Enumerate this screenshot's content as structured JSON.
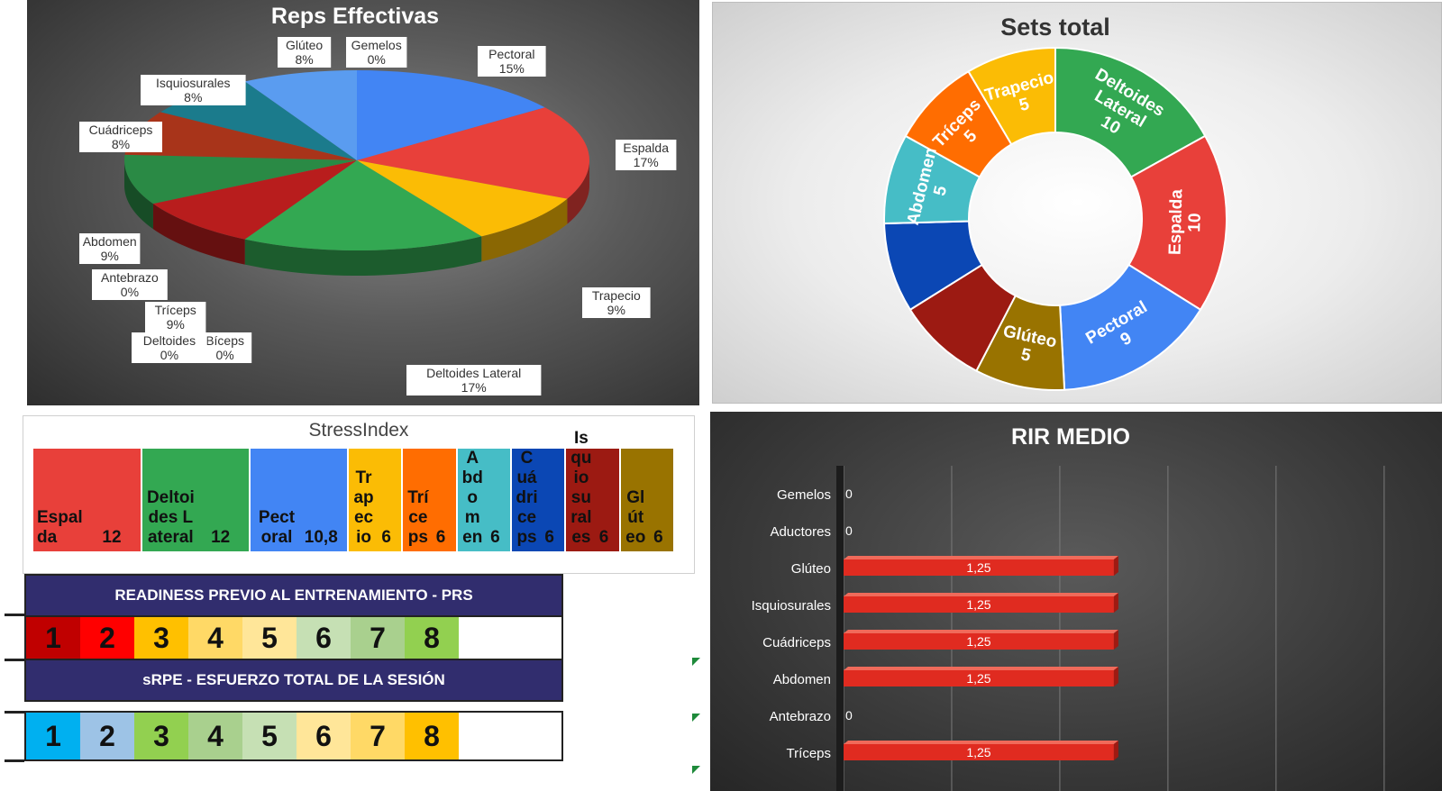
{
  "colors": {
    "espalda": "#e8403a",
    "deltoides": "#33a852",
    "pectoral": "#4285f4",
    "trapecio": "#fbbc05",
    "triceps": "#ff6d01",
    "abdomen": "#46bdc6",
    "cuadriceps": "#0b47b4",
    "isquiosurales": "#9c1a12",
    "gluteo": "#997300",
    "teal": "#1b7b8c",
    "brownred": "#a8341a",
    "darkgreen": "#2a8a45",
    "darkred": "#b81d1d"
  },
  "chart_data": [
    {
      "type": "pie",
      "title": "Reps Effectivas",
      "slices": [
        {
          "name": "Pectoral",
          "value": 15,
          "label": "15%",
          "color": "#4285f4"
        },
        {
          "name": "Espalda",
          "value": 17,
          "label": "17%",
          "color": "#e8403a"
        },
        {
          "name": "Trapecio",
          "value": 9,
          "label": "9%",
          "color": "#fbbc05"
        },
        {
          "name": "Deltoides Lateral",
          "value": 17,
          "label": "17%",
          "color": "#33a852"
        },
        {
          "name": "Bíceps",
          "value": 0,
          "label": "0%",
          "color": "#ff6d01"
        },
        {
          "name": "Deltoides",
          "value": 0,
          "label": "0%",
          "color": "#46bdc6"
        },
        {
          "name": "Tríceps",
          "value": 9,
          "label": "9%",
          "color": "#b81d1d"
        },
        {
          "name": "Antebrazo",
          "value": 0,
          "label": "0%",
          "color": "#0b47b4"
        },
        {
          "name": "Abdomen",
          "value": 9,
          "label": "9%",
          "color": "#2a8a45"
        },
        {
          "name": "Cuádriceps",
          "value": 8,
          "label": "8%",
          "color": "#a8341a"
        },
        {
          "name": "Isquiosurales",
          "value": 8,
          "label": "8%",
          "color": "#1b7b8c"
        },
        {
          "name": "Glúteo",
          "value": 8,
          "label": "8%",
          "color": "#5a9cf0"
        },
        {
          "name": "Gemelos",
          "value": 0,
          "label": "0%",
          "color": "#9c1a12"
        }
      ]
    },
    {
      "type": "pie",
      "variant": "donut",
      "title": "Sets total",
      "slices": [
        {
          "name": "Deltoides Lateral",
          "value": 10,
          "label_lines": [
            "Deltoides",
            "Lateral",
            "10"
          ],
          "color": "#33a852"
        },
        {
          "name": "Espalda",
          "value": 10,
          "label_lines": [
            "Espalda",
            "10"
          ],
          "color": "#e8403a"
        },
        {
          "name": "Pectoral",
          "value": 9,
          "label_lines": [
            "Pectoral",
            "9"
          ],
          "color": "#4285f4"
        },
        {
          "name": "Glúteo",
          "value": 5,
          "label_lines": [
            "Glúteo",
            "5"
          ],
          "color": "#997300"
        },
        {
          "name": "",
          "value": 5,
          "label_lines": [],
          "color": "#9c1a12"
        },
        {
          "name": "",
          "value": 5,
          "label_lines": [],
          "color": "#0b47b4"
        },
        {
          "name": "Abdomen",
          "value": 5,
          "label_lines": [
            "Abdomen",
            "5"
          ],
          "color": "#46bdc6"
        },
        {
          "name": "Tríceps",
          "value": 5,
          "label_lines": [
            "Tríceps",
            "5"
          ],
          "color": "#ff6d01"
        },
        {
          "name": "Trapecio",
          "value": 5,
          "label_lines": [
            "Trapecio",
            "5"
          ],
          "color": "#fbbc05"
        }
      ]
    },
    {
      "type": "heatmap",
      "variant": "treemap",
      "title": "StressIndex",
      "cells": [
        {
          "name": "Espalda",
          "display": "Espalda",
          "value": 12,
          "value_label": "12",
          "color": "#e8403a"
        },
        {
          "name": "Deltoides Lateral",
          "display": "Deltoides Lateral",
          "value": 12,
          "value_label": "12",
          "color": "#33a852"
        },
        {
          "name": "Pectoral",
          "display": "Pectoral",
          "value": 10.8,
          "value_label": "10,8",
          "color": "#4285f4"
        },
        {
          "name": "Trapecio",
          "display": "Trapecio",
          "value": 6,
          "value_label": "6",
          "color": "#fbbc05"
        },
        {
          "name": "Tríceps",
          "display": "Tríceps",
          "value": 6,
          "value_label": "6",
          "color": "#ff6d01"
        },
        {
          "name": "Abdomen",
          "display": "Abdomen",
          "value": 6,
          "value_label": "6",
          "color": "#46bdc6"
        },
        {
          "name": "Cuádriceps",
          "display": "Cuádriceps",
          "value": 6,
          "value_label": "6",
          "color": "#0b47b4"
        },
        {
          "name": "Isquiosurales",
          "display": "Isquiosurales",
          "value": 6,
          "value_label": "6",
          "color": "#9c1a12"
        },
        {
          "name": "Glúteo",
          "display": "Glúteo",
          "value": 6,
          "value_label": "6",
          "color": "#997300"
        }
      ]
    },
    {
      "type": "bar",
      "orientation": "horizontal",
      "title": "RIR MEDIO",
      "categories": [
        "Gemelos",
        "Aductores",
        "Glúteo",
        "Isquiosurales",
        "Cuádriceps",
        "Abdomen",
        "Antebrazo",
        "Tríceps"
      ],
      "values": [
        0,
        0,
        1.25,
        1.25,
        1.25,
        1.25,
        0,
        1.25
      ],
      "value_labels": [
        "0",
        "0",
        "1,25",
        "1,25",
        "1,25",
        "1,25",
        "0",
        "1,25"
      ],
      "xlim": [
        0,
        2.5
      ],
      "grid": true
    }
  ],
  "readiness": {
    "title": "READINESS PREVIO AL ENTRENAMIENTO - PRS",
    "cells": [
      {
        "label": "1",
        "color": "#c00000"
      },
      {
        "label": "2",
        "color": "#ff0000"
      },
      {
        "label": "3",
        "color": "#ffc000"
      },
      {
        "label": "4",
        "color": "#ffd966"
      },
      {
        "label": "5",
        "color": "#ffe699"
      },
      {
        "label": "6",
        "color": "#c6e0b4"
      },
      {
        "label": "7",
        "color": "#a9d08e"
      },
      {
        "label": "8",
        "color": "#92d050"
      }
    ]
  },
  "srpe": {
    "title": "sRPE - ESFUERZO TOTAL DE LA SESIÓN",
    "cells": [
      {
        "label": "1",
        "color": "#00b0f0"
      },
      {
        "label": "2",
        "color": "#9dc3e6"
      },
      {
        "label": "3",
        "color": "#92d050"
      },
      {
        "label": "4",
        "color": "#a9d08e"
      },
      {
        "label": "5",
        "color": "#c6e0b4"
      },
      {
        "label": "6",
        "color": "#ffe699"
      },
      {
        "label": "7",
        "color": "#ffd966"
      },
      {
        "label": "8",
        "color": "#ffc000"
      }
    ]
  }
}
